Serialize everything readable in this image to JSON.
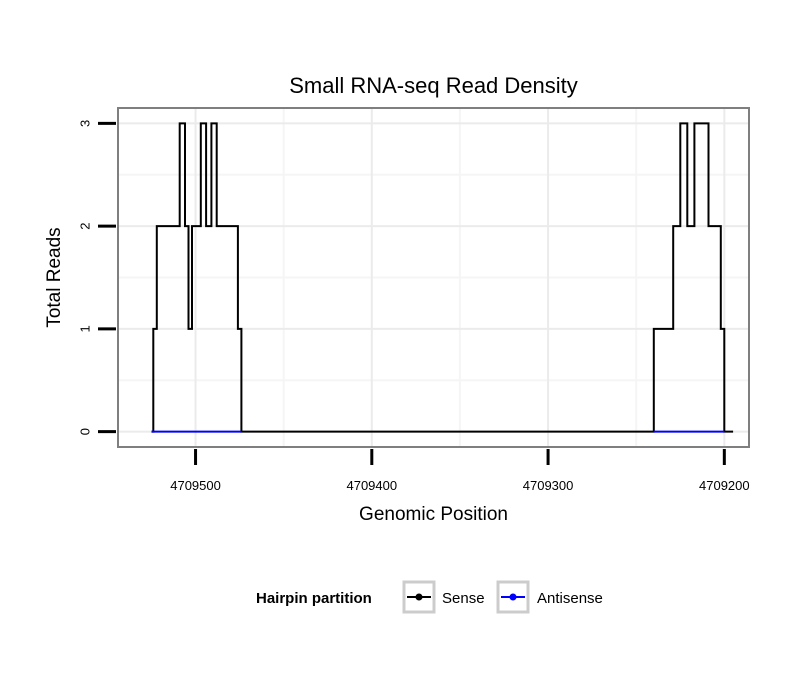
{
  "chart_data": {
    "type": "line",
    "title": "Small RNA-seq Read Density",
    "xlabel": "Genomic Position",
    "ylabel": "Total Reads",
    "x_reversed": true,
    "xlim": [
      4709544,
      4709186
    ],
    "ylim": [
      -0.15,
      3.15
    ],
    "x_ticks": [
      4709500,
      4709400,
      4709300,
      4709200
    ],
    "x_tick_labels": [
      "4709500",
      "4709400",
      "4709300",
      "4709200"
    ],
    "y_ticks": [
      0,
      1,
      2,
      3
    ],
    "y_tick_labels": [
      "0",
      "1",
      "2",
      "3"
    ],
    "grid": true,
    "legend": {
      "title": "Hairpin partition",
      "position": "bottom",
      "entries": [
        {
          "label": "Sense",
          "color": "#000000"
        },
        {
          "label": "Antisense",
          "color": "#0000ff"
        }
      ]
    },
    "series": [
      {
        "name": "Sense",
        "color": "#000000",
        "x": [
          4709525,
          4709524,
          4709524,
          4709522,
          4709522,
          4709509,
          4709509,
          4709506,
          4709506,
          4709504,
          4709504,
          4709502,
          4709502,
          4709497,
          4709497,
          4709494,
          4709494,
          4709491,
          4709491,
          4709488,
          4709488,
          4709476,
          4709476,
          4709474,
          4709474,
          4709291,
          4709240,
          4709240,
          4709229,
          4709229,
          4709225,
          4709225,
          4709221,
          4709221,
          4709217,
          4709217,
          4709209,
          4709209,
          4709202,
          4709202,
          4709200,
          4709200,
          4709195
        ],
        "y": [
          0,
          0,
          1,
          1,
          2,
          2,
          3,
          3,
          2,
          2,
          1,
          1,
          2,
          2,
          3,
          3,
          2,
          2,
          3,
          3,
          2,
          2,
          1,
          1,
          0,
          0,
          0,
          1,
          1,
          2,
          2,
          3,
          3,
          2,
          2,
          3,
          3,
          2,
          2,
          1,
          1,
          0,
          0
        ]
      },
      {
        "name": "Antisense",
        "color": "#0000ff",
        "segments": [
          {
            "x": [
              4709525,
              4709474
            ],
            "y": [
              0,
              0
            ]
          },
          {
            "x": [
              4709240,
              4709200
            ],
            "y": [
              0,
              0
            ]
          }
        ]
      }
    ]
  }
}
